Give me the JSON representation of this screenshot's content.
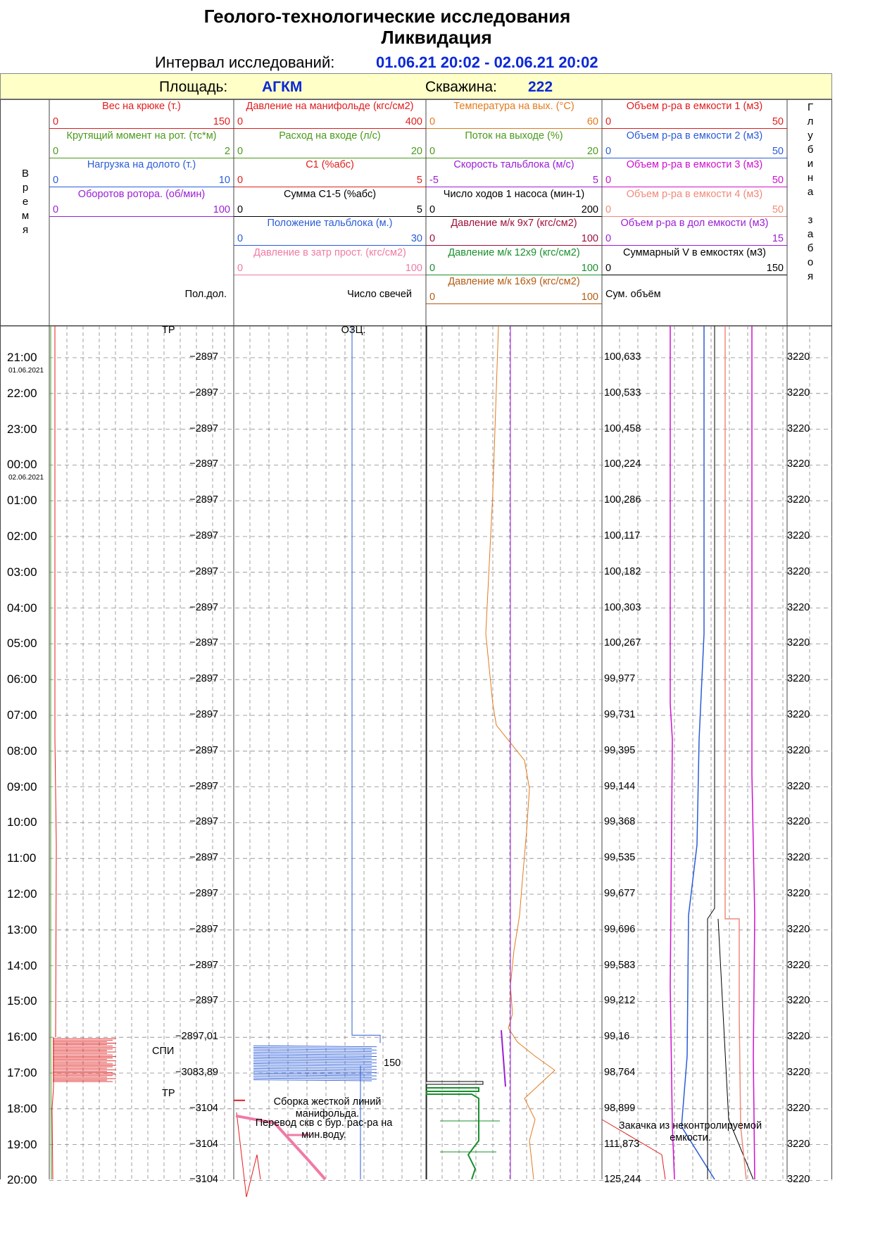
{
  "header": {
    "title": "Геолого-технологические исследования",
    "subtitle": "Ликвидация",
    "interval_label": "Интервал исследований:",
    "interval_value": "01.06.21 20:02 - 02.06.21 20:02",
    "area_label": "Площадь:",
    "area_value": "АГКМ",
    "well_label": "Скважина:",
    "well_value": "222"
  },
  "time_header": "Время",
  "depth_header": "Глубина забоя",
  "colors": {
    "red": "#e11d1d",
    "green": "#4a9a1a",
    "blue": "#2a5cd8",
    "purple": "#9a1ed6",
    "black": "#000000",
    "orange": "#e37b1c",
    "pink": "#f07aa6",
    "maroon": "#a0103a",
    "darkgreen": "#1a8f2e",
    "brown": "#b45b12",
    "magenta": "#d010d0",
    "salmon": "#f08a7a",
    "grid": "#888888"
  },
  "tracks": [
    {
      "id": "track1",
      "params": [
        {
          "name": "Вес на крюке  (т.)",
          "min": "0",
          "max": "150",
          "color": "red"
        },
        {
          "name": "Крутящий момент на рот. (тс*м)",
          "min": "0",
          "max": "2",
          "color": "green"
        },
        {
          "name": "Нагрузка на долото (т.)",
          "min": "0",
          "max": "10",
          "color": "blue"
        },
        {
          "name": "Оборотов ротора. (об/мин)",
          "min": "0",
          "max": "100",
          "color": "purple"
        }
      ],
      "footer": "Пол.дол."
    },
    {
      "id": "track2",
      "params": [
        {
          "name": "Давление на манифольде (кгс/см2)",
          "min": "0",
          "max": "400",
          "color": "red"
        },
        {
          "name": "Расход на входе (л/с)",
          "min": "0",
          "max": "20",
          "color": "green"
        },
        {
          "name": "C1 (%абс)",
          "min": "0",
          "max": "5",
          "color": "red"
        },
        {
          "name": "Сумма C1-5 (%абс)",
          "min": "0",
          "max": "5",
          "color": "black"
        },
        {
          "name": "Положение тальблока (м.)",
          "min": "0",
          "max": "30",
          "color": "blue"
        },
        {
          "name": "Давление в затр прост. (кгс/см2)",
          "min": "0",
          "max": "100",
          "color": "pink"
        }
      ],
      "footer": "Число свечей"
    },
    {
      "id": "track3",
      "params": [
        {
          "name": "Температура  на вых. (°С)",
          "min": "0",
          "max": "60",
          "color": "orange"
        },
        {
          "name": "Поток на выходе (%)",
          "min": "0",
          "max": "20",
          "color": "green"
        },
        {
          "name": "Скорость тальблока (м/с)",
          "min": "-5",
          "max": "5",
          "color": "purple"
        },
        {
          "name": "Число ходов 1 насоса (мин-1)",
          "min": "0",
          "max": "200",
          "color": "black"
        },
        {
          "name": "Давление м/к 9x7 (кгс/см2)",
          "min": "0",
          "max": "100",
          "color": "maroon"
        },
        {
          "name": "Давление м/к 12x9 (кгс/см2)",
          "min": "0",
          "max": "100",
          "color": "darkgreen"
        },
        {
          "name": "Давление м/к 16x9 (кгс/см2)",
          "min": "0",
          "max": "100",
          "color": "brown"
        }
      ],
      "footer": ""
    },
    {
      "id": "track4",
      "params": [
        {
          "name": "Объем р-ра в емкости 1 (м3)",
          "min": "0",
          "max": "50",
          "color": "red"
        },
        {
          "name": "Объем р-ра в емкости 2 (м3)",
          "min": "0",
          "max": "50",
          "color": "blue"
        },
        {
          "name": "Объем р-ра в емкости 3 (м3)",
          "min": "0",
          "max": "50",
          "color": "magenta"
        },
        {
          "name": "Объем р-ра в емкости 4 (м3)",
          "min": "0",
          "max": "50",
          "color": "salmon"
        },
        {
          "name": "Объем р-ра в дол емкости  (м3)",
          "min": "0",
          "max": "15",
          "color": "purple"
        },
        {
          "name": "Суммарный V в емкостях (м3)",
          "min": "0",
          "max": "150",
          "color": "black"
        }
      ],
      "footer": "Сум. объём"
    }
  ],
  "chart_data": {
    "type": "line",
    "x_axis": "time",
    "hours": [
      "21:00",
      "22:00",
      "23:00",
      "00:00",
      "01:00",
      "02:00",
      "03:00",
      "04:00",
      "05:00",
      "06:00",
      "07:00",
      "08:00",
      "09:00",
      "10:00",
      "11:00",
      "12:00",
      "13:00",
      "14:00",
      "15:00",
      "16:00",
      "17:00",
      "18:00",
      "19:00",
      "20:00"
    ],
    "dates": [
      {
        "hour": "21:00",
        "text": "01.06.2021"
      },
      {
        "hour": "00:00",
        "text": "02.06.2021"
      }
    ],
    "bit_position": [
      "−2897",
      "−2897",
      "−2897",
      "−2897",
      "−2897",
      "−2897",
      "−2897",
      "−2897",
      "−2897",
      "−2897",
      "−2897",
      "−2897",
      "−2897",
      "−2897",
      "−2897",
      "−2897",
      "−2897",
      "−2897",
      "−2897",
      "−2897,01",
      "−3083,89",
      "−3104",
      "−3104",
      "−3104"
    ],
    "total_volume": [
      "100,633",
      "100,533",
      "100,458",
      "100,224",
      "100,286",
      "100,117",
      "100,182",
      "100,303",
      "100,267",
      "99,977",
      "99,731",
      "99,395",
      "99,144",
      "99,368",
      "99,535",
      "99,677",
      "99,696",
      "99,583",
      "99,212",
      "99,16",
      "98,764",
      "98,899",
      "111,873",
      "125,244"
    ],
    "depth": [
      "3220",
      "3220",
      "3220",
      "3220",
      "3220",
      "3220",
      "3220",
      "3220",
      "3220",
      "3220",
      "3220",
      "3220",
      "3220",
      "3220",
      "3220",
      "3220",
      "3220",
      "3220",
      "3220",
      "3220",
      "3220",
      "3220",
      "3220",
      "3220"
    ],
    "annotations": [
      {
        "hour": "20:15",
        "track": "track1",
        "text": "ТР"
      },
      {
        "hour": "16:25",
        "track": "track1",
        "text": "СПИ"
      },
      {
        "hour": "17:35",
        "track": "track1",
        "text": "ТР"
      },
      {
        "hour": "20:15",
        "track": "track2",
        "text": "ОЗЦ."
      },
      {
        "hour": "16:45",
        "track": "track2",
        "text": "150"
      },
      {
        "hour": "17:50",
        "track": "track2",
        "text": "Сборка жесткой линий манифольда."
      },
      {
        "hour": "18:25",
        "track": "track2",
        "text": "Перевод скв  с бур. рас-ра на мин.воду."
      },
      {
        "hour": "18:30",
        "track": "track4",
        "text": "Закачка из неконтролируемой емкости."
      }
    ]
  }
}
